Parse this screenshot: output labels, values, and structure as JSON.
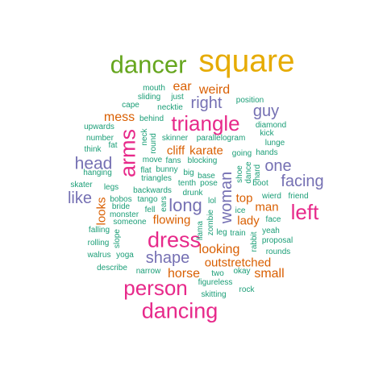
{
  "palette": {
    "teal": "#1b9e77",
    "orange": "#d95f02",
    "purple": "#7570b3",
    "pink": "#e7298a",
    "green": "#66a61e",
    "gold": "#e6ab02"
  },
  "words": {
    "square": "square",
    "dancer": "dancer",
    "triangle": "triangle",
    "dress": "dress",
    "person": "person",
    "dancing": "dancing",
    "arms": "arms",
    "left": "left",
    "right": "right",
    "guy": "guy",
    "head": "head",
    "one": "one",
    "facing": "facing",
    "like": "like",
    "long": "long",
    "woman": "woman",
    "shape": "shape",
    "looking": "looking",
    "outstretched": "outstretched",
    "horse": "horse",
    "small": "small",
    "mess": "mess",
    "ear": "ear",
    "weird": "weird",
    "cliff": "cliff",
    "karate": "karate",
    "top": "top",
    "man": "man",
    "lady": "lady",
    "flowing": "flowing",
    "looks": "looks",
    "mouth": "mouth",
    "sliding": "sliding",
    "just": "just",
    "position": "position",
    "cape": "cape",
    "necktie": "necktie",
    "behind": "behind",
    "diamond": "diamond",
    "kick": "kick",
    "upwards": "upwards",
    "neck": "neck",
    "skinner": "skinner",
    "parallelogram": "parallelogram",
    "lunge": "lunge",
    "number": "number",
    "round": "round",
    "fat": "fat",
    "think": "think",
    "going": "going",
    "hands": "hands",
    "fans": "fans",
    "blocking": "blocking",
    "move": "move",
    "flat": "flat",
    "bunny": "bunny",
    "shoe": "shoe",
    "dance": "dance",
    "hard": "hard",
    "hanging": "hanging",
    "triangles": "triangles",
    "big": "big",
    "base": "base",
    "skater": "skater",
    "legs": "legs",
    "tenth": "tenth",
    "pose": "pose",
    "boot": "boot",
    "backwards": "backwards",
    "drunk": "drunk",
    "wierd": "wierd",
    "friend": "friend",
    "bobos": "bobos",
    "tango": "tango",
    "lol": "lol",
    "bride": "bride",
    "ears": "ears",
    "fell": "fell",
    "ice": "ice",
    "monster": "monster",
    "face": "face",
    "someone": "someone",
    "zombie": "zombie",
    "falling": "falling",
    "llama": "llama",
    "leg": "leg",
    "train": "train",
    "yeah": "yeah",
    "rabbit": "rabbit",
    "slope": "slope",
    "proposal": "proposal",
    "rolling": "rolling",
    "walrus": "walrus",
    "yoga": "yoga",
    "rounds": "rounds",
    "describe": "describe",
    "narrow": "narrow",
    "two": "two",
    "okay": "okay",
    "figureless": "figureless",
    "rock": "rock",
    "skitting": "skitting"
  }
}
